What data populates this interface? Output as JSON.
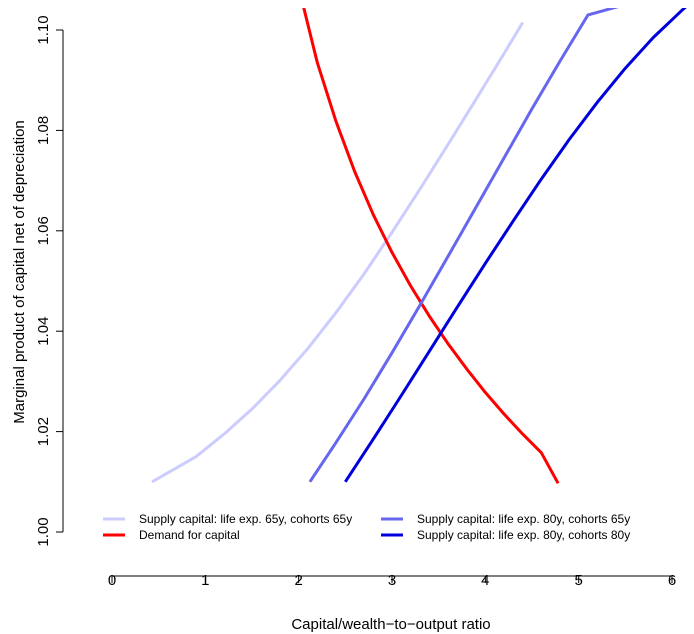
{
  "chart_data": {
    "type": "line",
    "title": "",
    "xlabel": "Capital/wealth−to−output ratio",
    "ylabel": "Marginal product of capital net of depreciation",
    "xlim": [
      0,
      6
    ],
    "ylim": [
      1.0,
      1.1
    ],
    "x_ticks": [
      0,
      1,
      2,
      3,
      4,
      5,
      6
    ],
    "x_tick_labels": [
      "0",
      "1",
      "2",
      "3",
      "4",
      "5",
      "6"
    ],
    "y_ticks": [
      1.0,
      1.02,
      1.04,
      1.06,
      1.08,
      1.1
    ],
    "y_tick_labels": [
      "1.00",
      "1.02",
      "1.04",
      "1.06",
      "1.08",
      "1.10"
    ],
    "grid": false,
    "legend_position": "bottom",
    "series": [
      {
        "name": "Supply capital: life exp. 65y, cohorts 65y",
        "color": "#ccccff",
        "x": [
          0.43,
          0.9,
          1.2,
          1.5,
          1.8,
          2.1,
          2.4,
          2.7,
          3.0,
          3.3,
          3.6,
          3.9,
          4.2,
          4.4
        ],
        "y": [
          1.01,
          1.015,
          1.0195,
          1.0245,
          1.0302,
          1.0366,
          1.0437,
          1.0514,
          1.0597,
          1.0683,
          1.0772,
          1.0862,
          1.0953,
          1.1015
        ]
      },
      {
        "name": "Demand for capital",
        "color": "#ff0000",
        "x": [
          2.05,
          2.2,
          2.4,
          2.6,
          2.8,
          3.0,
          3.2,
          3.4,
          3.6,
          3.8,
          4.0,
          4.2,
          4.4,
          4.6,
          4.78
        ],
        "y": [
          1.1048,
          1.0935,
          1.0818,
          1.0718,
          1.0632,
          1.0557,
          1.049,
          1.043,
          1.0375,
          1.0325,
          1.0278,
          1.0235,
          1.0195,
          1.0158,
          1.0097
        ]
      },
      {
        "name": "Supply capital: life exp. 80y, cohorts 65y",
        "color": "#6666ee",
        "x": [
          2.12,
          2.4,
          2.7,
          3.0,
          3.3,
          3.6,
          3.9,
          4.2,
          4.5,
          4.8,
          5.1,
          5.45
        ],
        "y": [
          1.01,
          1.0178,
          1.0265,
          1.0357,
          1.0452,
          1.0549,
          1.0647,
          1.0745,
          1.0843,
          1.0938,
          1.103,
          1.1048
        ]
      },
      {
        "name": "Supply capital: life exp. 80y, cohorts 80y",
        "color": "#0000dd",
        "x": [
          2.5,
          2.8,
          3.1,
          3.4,
          3.7,
          4.0,
          4.3,
          4.6,
          4.9,
          5.2,
          5.5,
          5.8,
          6.1,
          6.2
        ],
        "y": [
          1.01,
          1.0185,
          1.0272,
          1.036,
          1.0448,
          1.0535,
          1.062,
          1.0703,
          1.0782,
          1.0856,
          1.0924,
          1.0985,
          1.1038,
          1.1055
        ]
      }
    ]
  }
}
